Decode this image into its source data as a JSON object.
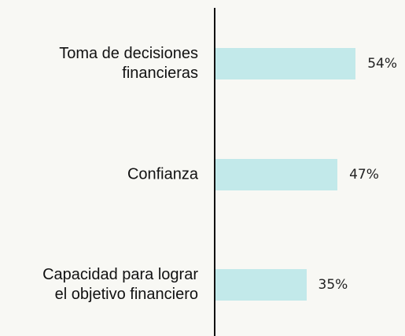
{
  "chart_data": {
    "type": "bar",
    "orientation": "horizontal",
    "categories": [
      "Toma de decisiones\nfinancieras",
      "Confianza",
      "Capacidad para lograr\nel objetivo financiero"
    ],
    "values": [
      54,
      47,
      35
    ],
    "value_labels": [
      "54%",
      "47%",
      "35%"
    ],
    "color": "#c2e9ea"
  }
}
